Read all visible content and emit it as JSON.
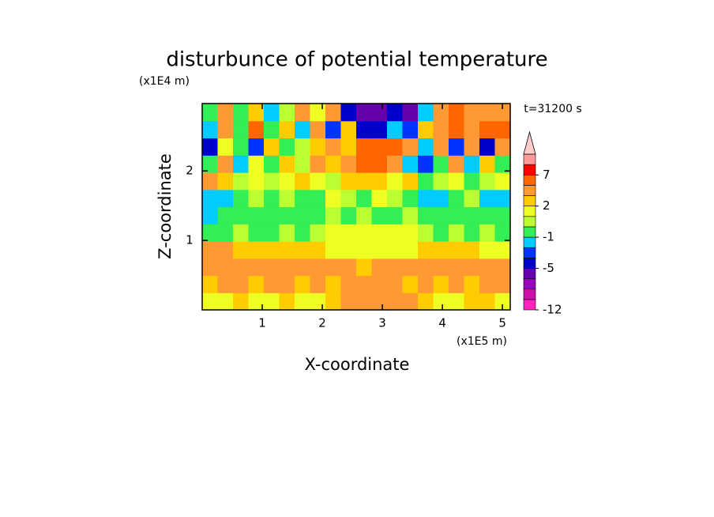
{
  "chart_data": {
    "type": "contour",
    "title": "disturbunce of potential temperature",
    "x_label": "X-coordinate",
    "y_label": "Z-coordinate",
    "x_unit": "(x1E5 m)",
    "y_unit": "(x1E4 m)",
    "time_label": "t=31200 s",
    "xlim": [
      0,
      5.13
    ],
    "ylim": [
      0,
      2.97
    ],
    "xticks": [
      1,
      2,
      3,
      4,
      5
    ],
    "yticks": [
      1,
      2
    ],
    "levels": [
      -12,
      -10,
      -8,
      -6,
      -5,
      -4,
      -2,
      -1,
      0,
      1,
      2,
      3,
      5,
      7,
      8,
      10
    ],
    "colors": [
      "#ff22bb",
      "#cc11aa",
      "#9900bb",
      "#6600aa",
      "#0000cc",
      "#0033ff",
      "#00ccff",
      "#33ee55",
      "#bbff33",
      "#eeff22",
      "#ffcc00",
      "#ff9933",
      "#ff6600",
      "#ff0000",
      "#ff9999"
    ],
    "color_above": "#ffcccc",
    "colorbar_ticks": [
      -12,
      -5,
      -1,
      2,
      7
    ],
    "z": [
      [
        1,
        1,
        2,
        1,
        1,
        2,
        1,
        1,
        2,
        3,
        3,
        4,
        3,
        3,
        2,
        1,
        1,
        2,
        2,
        1
      ],
      [
        2,
        3,
        3,
        2,
        3,
        3,
        2,
        3,
        2,
        3,
        3,
        3,
        3,
        2,
        3,
        2,
        3,
        2,
        3,
        3
      ],
      [
        4,
        4,
        3,
        4,
        4,
        3,
        3,
        3,
        4,
        3,
        2,
        3,
        3,
        3,
        3,
        4,
        4,
        3,
        4,
        3
      ],
      [
        3,
        3,
        2,
        2,
        2,
        2,
        2,
        2,
        1,
        1,
        1,
        1,
        1,
        1,
        2,
        2,
        2,
        2,
        1,
        1
      ],
      [
        -0.5,
        -0.5,
        0,
        -0.5,
        -0.5,
        0,
        -0.5,
        0.5,
        1,
        1,
        1,
        1.5,
        1,
        1,
        0.5,
        -0.5,
        0,
        -0.5,
        0,
        -0.5
      ],
      [
        -1.5,
        -0.5,
        -0.5,
        -0.5,
        -0.5,
        -0.5,
        -0.5,
        -0.5,
        0,
        -0.5,
        0,
        -0.5,
        -0.5,
        0,
        -0.5,
        -0.5,
        -0.5,
        -0.5,
        -0.5,
        -0.5
      ],
      [
        -1.5,
        -1.5,
        -0.5,
        0,
        -0.5,
        0.5,
        -0.5,
        -0.5,
        1,
        0.5,
        -0.5,
        1,
        0.5,
        -0.5,
        -1.5,
        -1.5,
        -0.5,
        0,
        -1.5,
        -1.5
      ],
      [
        3,
        2.5,
        0.5,
        1,
        0.5,
        1,
        2,
        1,
        0.5,
        2,
        2.5,
        2,
        1,
        2,
        -0.5,
        0.5,
        1.5,
        -0.5,
        0.5,
        1
      ],
      [
        -0.5,
        3,
        -1.5,
        1,
        -0.5,
        2,
        0.5,
        3,
        2,
        4,
        5,
        6,
        4,
        -1.5,
        -4,
        -0.5,
        4,
        -1.5,
        2,
        -0.5
      ],
      [
        -4.5,
        1,
        -0.5,
        -4,
        2,
        -0.5,
        0.5,
        2,
        3,
        2,
        5,
        6,
        5,
        3,
        -1.5,
        3,
        -4,
        4,
        -4.5,
        3
      ],
      [
        -1.5,
        3,
        -0.5,
        6,
        -0.5,
        2,
        -1.5,
        3,
        -4,
        2,
        -4.5,
        -4.5,
        -1.5,
        -4,
        2,
        3,
        6,
        3,
        5,
        6
      ],
      [
        -0.5,
        4,
        -0.5,
        2,
        -1.5,
        0.5,
        3,
        1,
        4,
        -4.5,
        -5.5,
        -5.5,
        -4.5,
        -5.5,
        -1.5,
        3,
        5,
        3,
        4,
        3
      ]
    ]
  }
}
